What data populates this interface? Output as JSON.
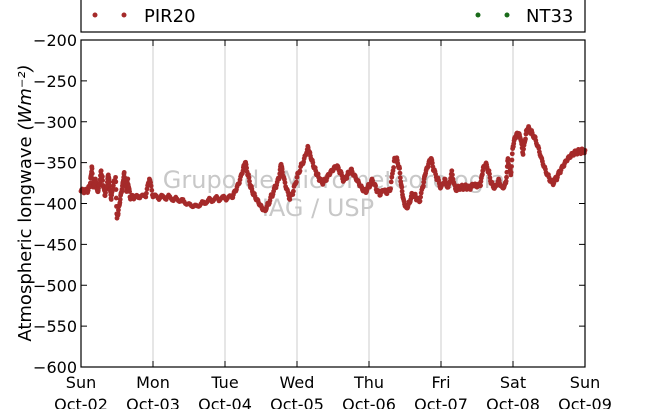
{
  "chart_data": {
    "type": "scatter",
    "title": "",
    "xlabel": "",
    "ylabel": "Atmospheric longwave",
    "ylabel_unit": "(Wm⁻²)",
    "ylim": [
      -600,
      -200
    ],
    "yticks": [
      -600,
      -550,
      -500,
      -450,
      -400,
      -350,
      -300,
      -250,
      -200
    ],
    "ytick_labels": [
      "−600",
      "−550",
      "−500",
      "−450",
      "−400",
      "−350",
      "−300",
      "−250",
      "−200"
    ],
    "xlim": [
      0,
      7
    ],
    "xticks": [
      0,
      1,
      2,
      3,
      4,
      5,
      6,
      7
    ],
    "xtick_labels": [
      [
        "Sun",
        "Oct-02"
      ],
      [
        "Mon",
        "Oct-03"
      ],
      [
        "Tue",
        "Oct-04"
      ],
      [
        "Wed",
        "Oct-05"
      ],
      [
        "Thu",
        "Oct-06"
      ],
      [
        "Fri",
        "Oct-07"
      ],
      [
        "Sat",
        "Oct-08"
      ],
      [
        "Sun",
        "Oct-09"
      ]
    ],
    "grid": "vertical",
    "legend_placement": "top",
    "watermark": [
      "Grupo de Micrometeorologia",
      "IAG / USP"
    ],
    "series": [
      {
        "name": "PIR20",
        "color": "#a52a2a",
        "points": [
          [
            0.0,
            -385
          ],
          [
            0.05,
            -386
          ],
          [
            0.1,
            -384
          ],
          [
            0.13,
            -375
          ],
          [
            0.15,
            -355
          ],
          [
            0.17,
            -380
          ],
          [
            0.2,
            -370
          ],
          [
            0.23,
            -385
          ],
          [
            0.25,
            -378
          ],
          [
            0.28,
            -360
          ],
          [
            0.3,
            -372
          ],
          [
            0.33,
            -390
          ],
          [
            0.36,
            -380
          ],
          [
            0.38,
            -365
          ],
          [
            0.4,
            -382
          ],
          [
            0.42,
            -395
          ],
          [
            0.45,
            -378
          ],
          [
            0.48,
            -368
          ],
          [
            0.5,
            -418
          ],
          [
            0.52,
            -408
          ],
          [
            0.55,
            -390
          ],
          [
            0.58,
            -375
          ],
          [
            0.6,
            -362
          ],
          [
            0.63,
            -385
          ],
          [
            0.65,
            -370
          ],
          [
            0.68,
            -392
          ],
          [
            0.72,
            -393
          ],
          [
            0.8,
            -393
          ],
          [
            0.9,
            -392
          ],
          [
            0.95,
            -370
          ],
          [
            1.0,
            -392
          ],
          [
            1.1,
            -393
          ],
          [
            1.2,
            -392
          ],
          [
            1.3,
            -394
          ],
          [
            1.4,
            -395
          ],
          [
            1.5,
            -400
          ],
          [
            1.6,
            -402
          ],
          [
            1.7,
            -398
          ],
          [
            1.8,
            -395
          ],
          [
            1.9,
            -394
          ],
          [
            2.0,
            -394
          ],
          [
            2.1,
            -393
          ],
          [
            2.15,
            -385
          ],
          [
            2.2,
            -375
          ],
          [
            2.25,
            -360
          ],
          [
            2.28,
            -350
          ],
          [
            2.32,
            -365
          ],
          [
            2.36,
            -380
          ],
          [
            2.4,
            -388
          ],
          [
            2.45,
            -395
          ],
          [
            2.5,
            -402
          ],
          [
            2.55,
            -408
          ],
          [
            2.6,
            -400
          ],
          [
            2.65,
            -390
          ],
          [
            2.7,
            -380
          ],
          [
            2.75,
            -370
          ],
          [
            2.78,
            -352
          ],
          [
            2.8,
            -365
          ],
          [
            2.85,
            -382
          ],
          [
            2.9,
            -395
          ],
          [
            2.95,
            -385
          ],
          [
            3.0,
            -368
          ],
          [
            3.05,
            -355
          ],
          [
            3.1,
            -345
          ],
          [
            3.15,
            -330
          ],
          [
            3.18,
            -338
          ],
          [
            3.22,
            -350
          ],
          [
            3.26,
            -360
          ],
          [
            3.3,
            -368
          ],
          [
            3.35,
            -375
          ],
          [
            3.4,
            -372
          ],
          [
            3.45,
            -365
          ],
          [
            3.5,
            -360
          ],
          [
            3.55,
            -355
          ],
          [
            3.6,
            -362
          ],
          [
            3.65,
            -372
          ],
          [
            3.7,
            -365
          ],
          [
            3.75,
            -358
          ],
          [
            3.8,
            -365
          ],
          [
            3.85,
            -372
          ],
          [
            3.9,
            -380
          ],
          [
            3.95,
            -385
          ],
          [
            4.0,
            -378
          ],
          [
            4.05,
            -372
          ],
          [
            4.1,
            -383
          ],
          [
            4.15,
            -390
          ],
          [
            4.2,
            -385
          ],
          [
            4.25,
            -388
          ],
          [
            4.3,
            -382
          ],
          [
            4.35,
            -348
          ],
          [
            4.38,
            -345
          ],
          [
            4.42,
            -355
          ],
          [
            4.45,
            -378
          ],
          [
            4.48,
            -395
          ],
          [
            4.52,
            -405
          ],
          [
            4.56,
            -398
          ],
          [
            4.6,
            -388
          ],
          [
            4.65,
            -392
          ],
          [
            4.7,
            -398
          ],
          [
            4.75,
            -380
          ],
          [
            4.78,
            -365
          ],
          [
            4.82,
            -355
          ],
          [
            4.86,
            -345
          ],
          [
            4.9,
            -360
          ],
          [
            4.95,
            -370
          ],
          [
            5.0,
            -380
          ],
          [
            5.05,
            -370
          ],
          [
            5.1,
            -380
          ],
          [
            5.15,
            -360
          ],
          [
            5.2,
            -382
          ],
          [
            5.25,
            -380
          ],
          [
            5.3,
            -380
          ],
          [
            5.35,
            -380
          ],
          [
            5.4,
            -382
          ],
          [
            5.45,
            -378
          ],
          [
            5.5,
            -380
          ],
          [
            5.55,
            -378
          ],
          [
            5.58,
            -360
          ],
          [
            5.62,
            -352
          ],
          [
            5.66,
            -360
          ],
          [
            5.7,
            -375
          ],
          [
            5.75,
            -380
          ],
          [
            5.8,
            -370
          ],
          [
            5.85,
            -380
          ],
          [
            5.9,
            -375
          ],
          [
            5.93,
            -345
          ],
          [
            5.97,
            -365
          ],
          [
            6.0,
            -330
          ],
          [
            6.03,
            -320
          ],
          [
            6.07,
            -315
          ],
          [
            6.1,
            -320
          ],
          [
            6.14,
            -340
          ],
          [
            6.18,
            -315
          ],
          [
            6.21,
            -308
          ],
          [
            6.25,
            -312
          ],
          [
            6.3,
            -318
          ],
          [
            6.35,
            -330
          ],
          [
            6.4,
            -345
          ],
          [
            6.45,
            -358
          ],
          [
            6.5,
            -368
          ],
          [
            6.55,
            -375
          ],
          [
            6.6,
            -370
          ],
          [
            6.65,
            -362
          ],
          [
            6.7,
            -355
          ],
          [
            6.75,
            -348
          ],
          [
            6.8,
            -343
          ],
          [
            6.85,
            -339
          ],
          [
            6.9,
            -337
          ],
          [
            6.95,
            -336
          ],
          [
            7.0,
            -335
          ]
        ]
      },
      {
        "name": "NT33",
        "color": "#1a6b1a",
        "points": []
      }
    ]
  }
}
